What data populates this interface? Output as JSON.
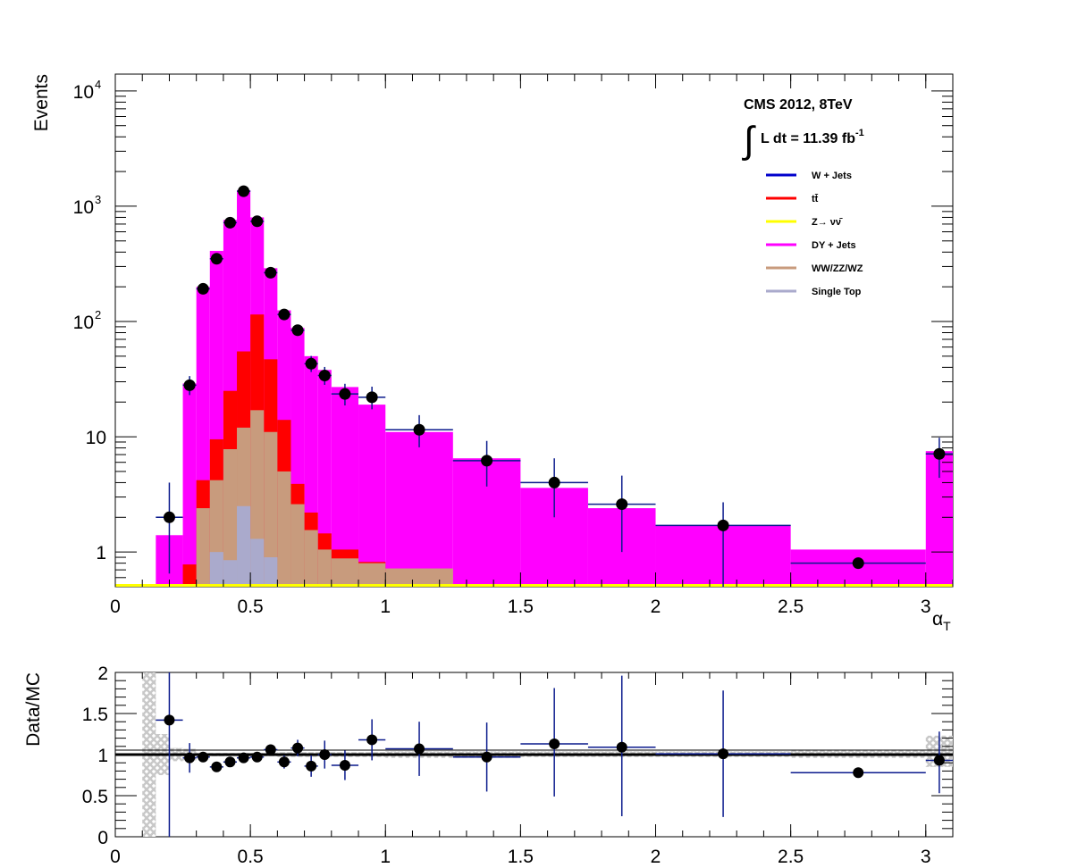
{
  "chart_data": [
    {
      "type": "bar",
      "xlabel": "α_T",
      "ylabel": "Events",
      "yscale": "log",
      "xlim": [
        0,
        3.1
      ],
      "ylim": [
        0.5,
        14000
      ],
      "x_ticks": [
        "0",
        "0.5",
        "1",
        "1.5",
        "2",
        "2.5",
        "3"
      ],
      "y_ticks": [
        {
          "base": "1",
          "exp": ""
        },
        {
          "base": "10",
          "exp": ""
        },
        {
          "base": "10",
          "exp": "2"
        },
        {
          "base": "10",
          "exp": "3"
        },
        {
          "base": "10",
          "exp": "4"
        }
      ],
      "bin_edges": [
        0.15,
        0.25,
        0.3,
        0.35,
        0.4,
        0.45,
        0.5,
        0.55,
        0.6,
        0.65,
        0.7,
        0.75,
        0.8,
        0.9,
        1.0,
        1.25,
        1.5,
        1.75,
        2.0,
        2.5,
        3.0,
        3.1
      ],
      "series": [
        {
          "name": "DY + Jets",
          "color": "#ff00ff",
          "values": [
            1.4,
            29,
            200,
            410,
            760,
            1380,
            800,
            290,
            125,
            88,
            50,
            38,
            27,
            19,
            11,
            6.5,
            3.6,
            2.4,
            1.7,
            1.05,
            7.5
          ]
        },
        {
          "name": "tt̄",
          "color": "#ff0000",
          "values": [
            0,
            0.78,
            4.2,
            9.5,
            25,
            55,
            115,
            47,
            14,
            3.9,
            2.2,
            1.45,
            1.05,
            0.82,
            0.52,
            0.52,
            0,
            0,
            0,
            0,
            0
          ]
        },
        {
          "name": "WW/ZZ/WZ",
          "color": "#c89b7d",
          "values": [
            0,
            0,
            2.4,
            4.2,
            7.8,
            12,
            17,
            11,
            5,
            2.6,
            1.55,
            1.05,
            0.88,
            0.8,
            0.72,
            0,
            0,
            0,
            0,
            0,
            0
          ]
        },
        {
          "name": "Single Top",
          "color": "#aaaacc",
          "values": [
            0,
            0,
            0,
            1.0,
            0.85,
            2.5,
            1.3,
            0.9,
            0,
            0,
            0,
            0,
            0,
            0,
            0,
            0,
            0,
            0,
            0,
            0,
            0
          ]
        },
        {
          "name": "Z→ νν̄",
          "color": "#ffff00",
          "values": [
            0.5,
            0.5,
            0.5,
            0.5,
            0.5,
            0.5,
            0.5,
            0.5,
            0.5,
            0.5,
            0.5,
            0.5,
            0.5,
            0.5,
            0.5,
            0.5,
            0.5,
            0.5,
            0.5,
            0.5,
            0.5
          ]
        },
        {
          "name": "W + Jets",
          "color": "#0000cc",
          "values": []
        }
      ],
      "data_points": {
        "name": "Data",
        "x": [
          0.2,
          0.275,
          0.325,
          0.375,
          0.425,
          0.475,
          0.525,
          0.575,
          0.625,
          0.675,
          0.725,
          0.775,
          0.85,
          0.95,
          1.125,
          1.375,
          1.625,
          1.875,
          2.25,
          2.75,
          3.05
        ],
        "x_err": [
          0.05,
          0.025,
          0.025,
          0.025,
          0.025,
          0.025,
          0.025,
          0.025,
          0.025,
          0.025,
          0.025,
          0.025,
          0.05,
          0.05,
          0.125,
          0.125,
          0.125,
          0.125,
          0.25,
          0.25,
          0.05
        ],
        "y": [
          2,
          28,
          192,
          350,
          720,
          1350,
          740,
          265,
          115,
          84,
          43,
          34,
          23.5,
          22,
          11.5,
          6.2,
          4.0,
          2.6,
          1.7,
          0.8,
          7.1
        ],
        "y_err_lo": [
          1.35,
          5,
          14,
          19,
          27,
          37,
          27,
          16,
          11,
          9,
          6.5,
          5.8,
          4.8,
          4.7,
          3.4,
          2.5,
          2.0,
          1.6,
          1.3,
          0,
          2.7
        ],
        "y_err_hi": [
          2.0,
          5.6,
          14,
          19,
          27,
          37,
          27,
          16,
          11,
          9.5,
          7.2,
          6.3,
          5.3,
          5.2,
          3.9,
          3.0,
          2.5,
          2.0,
          1.0,
          0,
          2.7
        ]
      },
      "annotations": {
        "experiment": "CMS 2012, 8TeV",
        "luminosity": "L dt = 11.39 fb",
        "luminosity_exp": "-1"
      },
      "legend_position": "top-right"
    },
    {
      "type": "scatter",
      "xlabel": "",
      "ylabel": "Data/MC",
      "xlim": [
        0,
        3.1
      ],
      "ylim": [
        0,
        2
      ],
      "x_ticks": [
        "0",
        "0.5",
        "1",
        "1.5",
        "2",
        "2.5",
        "3"
      ],
      "y_ticks": [
        "0",
        "0.5",
        "1",
        "1.5",
        "2"
      ],
      "reference_line": 1.0,
      "ratio_points": {
        "x": [
          0.2,
          0.275,
          0.325,
          0.375,
          0.425,
          0.475,
          0.525,
          0.575,
          0.625,
          0.675,
          0.725,
          0.775,
          0.85,
          0.95,
          1.125,
          1.375,
          1.625,
          1.875,
          2.25,
          2.75,
          3.05
        ],
        "x_err": [
          0.05,
          0.025,
          0.025,
          0.025,
          0.025,
          0.025,
          0.025,
          0.025,
          0.025,
          0.025,
          0.025,
          0.025,
          0.05,
          0.05,
          0.125,
          0.125,
          0.125,
          0.125,
          0.25,
          0.25,
          0.05
        ],
        "y": [
          1.42,
          0.96,
          0.97,
          0.85,
          0.91,
          0.96,
          0.97,
          1.06,
          0.91,
          1.08,
          0.86,
          1.0,
          0.87,
          1.18,
          1.07,
          0.97,
          1.13,
          1.09,
          1.01,
          0.78,
          0.93
        ],
        "err_lo": [
          1.42,
          0.18,
          0.06,
          0.04,
          0.03,
          0.03,
          0.04,
          0.06,
          0.08,
          0.1,
          0.13,
          0.17,
          0.18,
          0.25,
          0.33,
          0.42,
          0.64,
          0.84,
          0.77,
          0,
          0.4
        ],
        "err_hi": [
          1.42,
          0.18,
          0.06,
          0.04,
          0.03,
          0.03,
          0.04,
          0.06,
          0.08,
          0.1,
          0.13,
          0.17,
          0.18,
          0.25,
          0.33,
          0.42,
          0.68,
          0.87,
          0.77,
          0,
          0.35
        ]
      },
      "mc_band": {
        "x_lo": [
          0.1,
          0.15,
          0.2,
          0.25,
          0.3,
          0.6,
          1.0,
          1.5,
          2.0,
          2.5,
          3.0
        ],
        "x_hi": [
          0.15,
          0.2,
          0.25,
          0.3,
          0.6,
          1.0,
          1.5,
          2.0,
          2.5,
          3.0,
          3.1
        ],
        "lo": [
          0,
          0.75,
          0.92,
          0.93,
          0.98,
          0.97,
          0.96,
          0.97,
          0.97,
          0.96,
          0.85
        ],
        "hi": [
          2,
          1.25,
          1.08,
          1.07,
          1.02,
          1.03,
          1.04,
          1.04,
          1.04,
          1.06,
          1.23
        ]
      }
    }
  ]
}
